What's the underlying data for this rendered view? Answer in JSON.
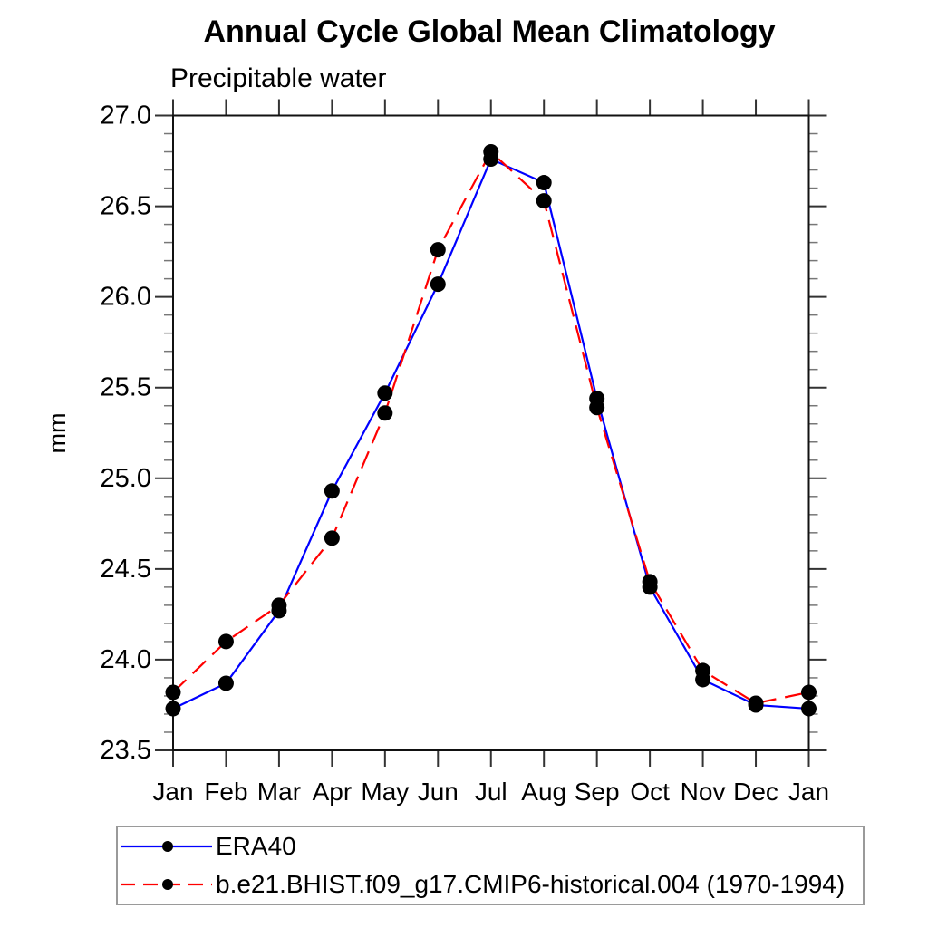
{
  "chart_data": {
    "type": "line",
    "title": "Annual Cycle Global Mean Climatology",
    "subtitle": "Precipitable water",
    "ylabel": "mm",
    "xlabel": "",
    "categories": [
      "Jan",
      "Feb",
      "Mar",
      "Apr",
      "May",
      "Jun",
      "Jul",
      "Aug",
      "Sep",
      "Oct",
      "Nov",
      "Dec",
      "Jan"
    ],
    "ylim": [
      23.5,
      27.0
    ],
    "y_major_ticks": [
      23.5,
      24.0,
      24.5,
      25.0,
      25.5,
      26.0,
      26.5,
      27.0
    ],
    "y_minor_step": 0.1,
    "grid": false,
    "legend_position": "bottom",
    "marker": "filled-circle",
    "marker_color": "#000000",
    "series": [
      {
        "name": "ERA40",
        "color": "#0000ff",
        "style": "solid",
        "values": [
          23.73,
          23.87,
          24.27,
          24.93,
          25.47,
          26.07,
          26.76,
          26.63,
          25.44,
          24.4,
          23.89,
          23.75,
          23.73
        ]
      },
      {
        "name": "b.e21.BHIST.f09_g17.CMIP6-historical.004 (1970-1994)",
        "color": "#ff0000",
        "style": "dashed",
        "values": [
          23.82,
          24.1,
          24.3,
          24.67,
          25.36,
          26.26,
          26.8,
          26.53,
          25.39,
          24.43,
          23.94,
          23.76,
          23.82
        ]
      }
    ]
  }
}
